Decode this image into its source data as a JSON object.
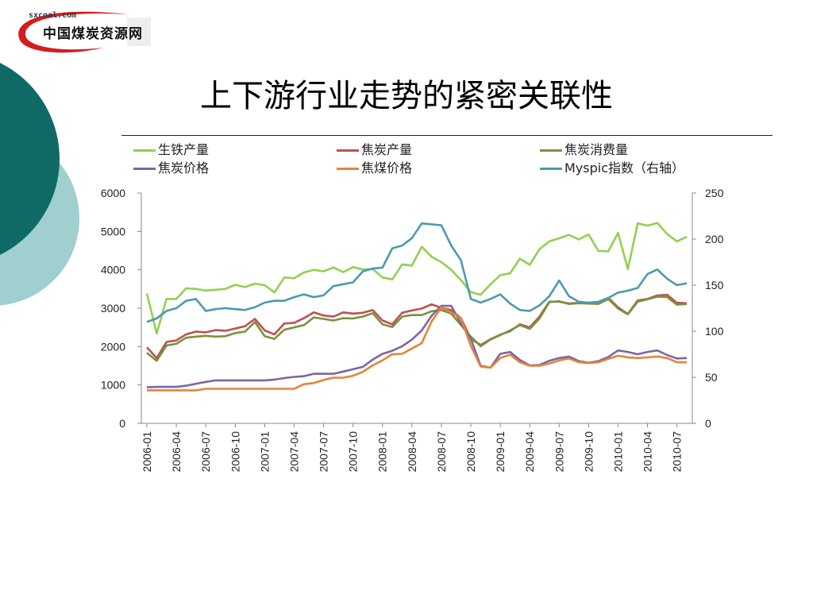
{
  "logo": {
    "url": "sxcoal.com",
    "name": "中国煤炭资源网"
  },
  "page_title": "上下游行业走势的紧密关联性",
  "colors": {
    "teal_dark": "#0f6a66",
    "teal_light": "#9fcfcf"
  },
  "chart_data": {
    "type": "line",
    "title": "",
    "xlabel": "",
    "ylabel": "",
    "x": [
      "2006-01",
      "2006-02",
      "2006-03",
      "2006-04",
      "2006-05",
      "2006-06",
      "2006-07",
      "2006-08",
      "2006-09",
      "2006-10",
      "2006-11",
      "2006-12",
      "2007-01",
      "2007-02",
      "2007-03",
      "2007-04",
      "2007-05",
      "2007-06",
      "2007-07",
      "2007-08",
      "2007-09",
      "2007-10",
      "2007-11",
      "2007-12",
      "2008-01",
      "2008-02",
      "2008-03",
      "2008-04",
      "2008-05",
      "2008-06",
      "2008-07",
      "2008-08",
      "2008-09",
      "2008-10",
      "2008-11",
      "2008-12",
      "2009-01",
      "2009-02",
      "2009-03",
      "2009-04",
      "2009-05",
      "2009-06",
      "2009-07",
      "2009-08",
      "2009-09",
      "2009-10",
      "2009-11",
      "2009-12",
      "2010-01",
      "2010-02",
      "2010-03",
      "2010-04",
      "2010-05",
      "2010-06",
      "2010-07",
      "2010-08"
    ],
    "x_tick_labels": [
      "2006-01",
      "2006-04",
      "2006-07",
      "2006-10",
      "2007-01",
      "2007-04",
      "2007-07",
      "2007-10",
      "2008-01",
      "2008-04",
      "2008-07",
      "2008-10",
      "2009-01",
      "2009-04",
      "2009-07",
      "2009-10",
      "2010-01",
      "2010-04",
      "2010-07"
    ],
    "y_left": {
      "min": 0,
      "max": 6000,
      "ticks": [
        "0",
        "1000",
        "2000",
        "3000",
        "4000",
        "5000",
        "6000"
      ]
    },
    "y_right": {
      "min": 0,
      "max": 250,
      "ticks": [
        "0",
        "50",
        "100",
        "150",
        "200",
        "250"
      ]
    },
    "grid": false,
    "legend_position": "top",
    "series": [
      {
        "name": "生铁产量",
        "color": "#92d050",
        "axis": "left",
        "values": [
          3380,
          2340,
          3240,
          3240,
          3520,
          3500,
          3460,
          3480,
          3500,
          3610,
          3550,
          3640,
          3600,
          3410,
          3800,
          3780,
          3930,
          4000,
          3960,
          4060,
          3940,
          4070,
          4010,
          4020,
          3800,
          3750,
          4140,
          4110,
          4600,
          4340,
          4200,
          4000,
          3730,
          3420,
          3350,
          3620,
          3860,
          3910,
          4290,
          4130,
          4540,
          4740,
          4820,
          4910,
          4790,
          4920,
          4490,
          4480,
          4960,
          4020,
          5210,
          5150,
          5220,
          4930,
          4740,
          4860
        ]
      },
      {
        "name": "焦炭产量",
        "color": "#c0504d",
        "axis": "left",
        "values": [
          1980,
          1700,
          2120,
          2160,
          2320,
          2390,
          2370,
          2430,
          2410,
          2470,
          2530,
          2720,
          2420,
          2320,
          2600,
          2620,
          2740,
          2890,
          2810,
          2780,
          2890,
          2860,
          2880,
          2950,
          2680,
          2580,
          2880,
          2940,
          2990,
          3100,
          3010,
          2950,
          2740,
          2200,
          2040,
          2190,
          2310,
          2400,
          2580,
          2500,
          2780,
          3170,
          3170,
          3120,
          3140,
          3140,
          3130,
          3270,
          3020,
          2850,
          3200,
          3240,
          3330,
          3350,
          3140,
          3130
        ]
      },
      {
        "name": "焦炭消费量",
        "color": "#77933c",
        "axis": "left",
        "values": [
          1840,
          1630,
          2030,
          2070,
          2230,
          2260,
          2280,
          2260,
          2270,
          2350,
          2390,
          2640,
          2270,
          2200,
          2440,
          2500,
          2560,
          2760,
          2720,
          2680,
          2740,
          2730,
          2780,
          2870,
          2580,
          2510,
          2780,
          2820,
          2820,
          2920,
          2950,
          2860,
          2560,
          2260,
          2010,
          2180,
          2300,
          2420,
          2560,
          2460,
          2730,
          3160,
          3180,
          3110,
          3130,
          3120,
          3110,
          3240,
          2990,
          2840,
          3170,
          3230,
          3300,
          3290,
          3090,
          3110
        ]
      },
      {
        "name": "焦炭价格",
        "color": "#8064a2",
        "axis": "left",
        "values": [
          940,
          950,
          950,
          950,
          980,
          1030,
          1080,
          1120,
          1120,
          1120,
          1120,
          1120,
          1120,
          1140,
          1180,
          1210,
          1230,
          1290,
          1290,
          1290,
          1350,
          1410,
          1470,
          1660,
          1810,
          1890,
          2010,
          2180,
          2420,
          2800,
          3060,
          3060,
          2600,
          2200,
          1500,
          1450,
          1810,
          1860,
          1650,
          1510,
          1520,
          1630,
          1700,
          1740,
          1620,
          1580,
          1620,
          1730,
          1900,
          1860,
          1800,
          1860,
          1900,
          1780,
          1690,
          1700
        ]
      },
      {
        "name": "焦煤价格",
        "color": "#e4843a",
        "axis": "left",
        "values": [
          860,
          860,
          860,
          860,
          860,
          860,
          900,
          900,
          900,
          900,
          900,
          900,
          900,
          900,
          900,
          900,
          1020,
          1050,
          1130,
          1190,
          1190,
          1240,
          1340,
          1510,
          1640,
          1800,
          1810,
          1950,
          2090,
          2650,
          3020,
          2890,
          2740,
          2020,
          1480,
          1450,
          1700,
          1790,
          1590,
          1500,
          1500,
          1560,
          1640,
          1690,
          1590,
          1570,
          1590,
          1680,
          1760,
          1720,
          1700,
          1720,
          1740,
          1700,
          1590,
          1590
        ]
      },
      {
        "name": "Myspic指数（右轴）",
        "color": "#4a9ab0",
        "axis": "right",
        "values": [
          110,
          114,
          122,
          125,
          133,
          135,
          122,
          124,
          125,
          124,
          123,
          126,
          131,
          133,
          133,
          137,
          140,
          137,
          139,
          149,
          151,
          153,
          165,
          168,
          169,
          190,
          193,
          201,
          217,
          216,
          215,
          193,
          177,
          135,
          131,
          135,
          140,
          130,
          123,
          122,
          128,
          138,
          155,
          138,
          132,
          131,
          132,
          136,
          142,
          144,
          147,
          162,
          167,
          157,
          150,
          152
        ]
      }
    ]
  }
}
